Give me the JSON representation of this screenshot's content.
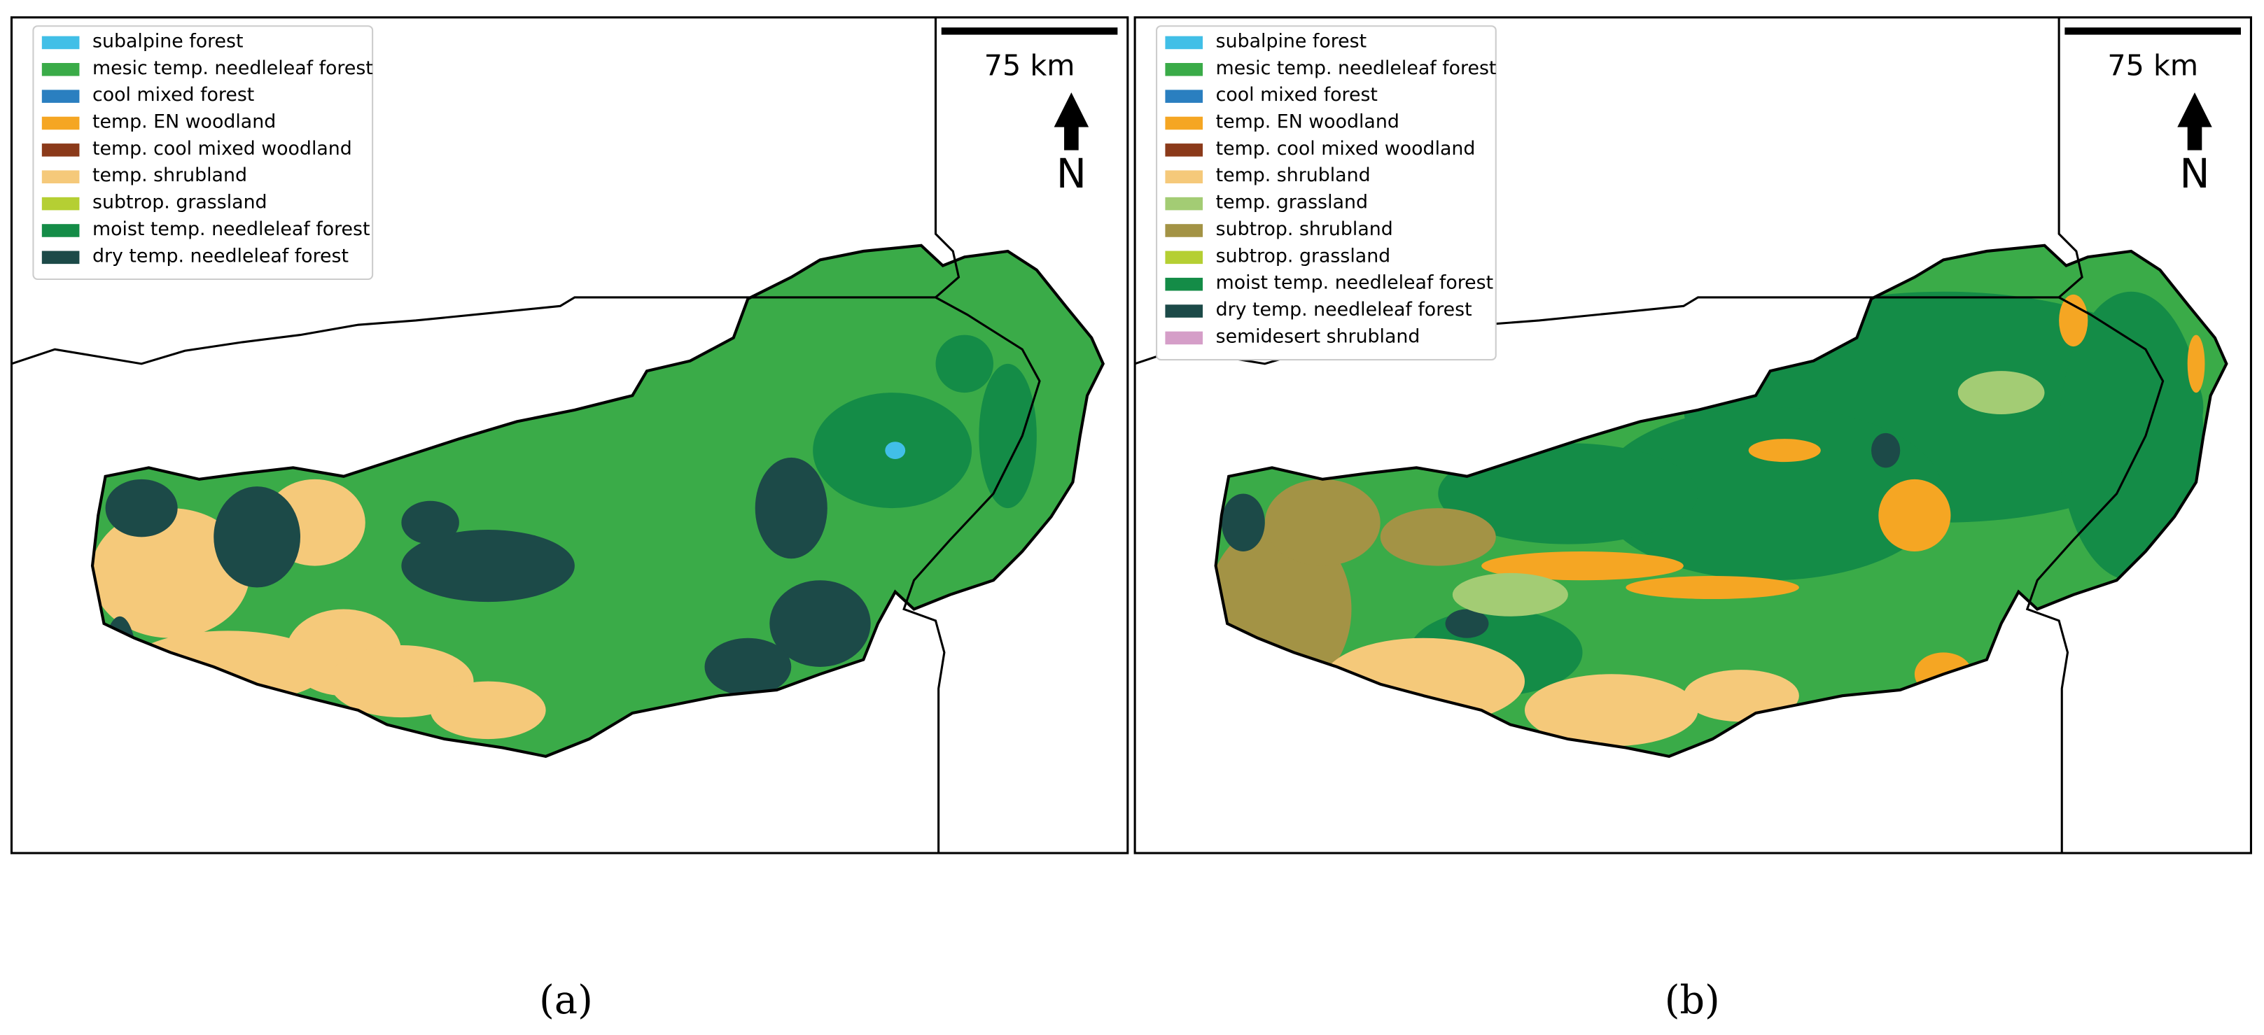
{
  "panels": [
    {
      "caption": "(a)",
      "scale_bar": "75 km",
      "north": "N",
      "legend": [
        {
          "label": "subalpine forest",
          "color": "#41bfe7"
        },
        {
          "label": "mesic temp. needleleaf forest",
          "color": "#3aab48"
        },
        {
          "label": "cool mixed forest",
          "color": "#2a7fc0"
        },
        {
          "label": "temp. EN woodland",
          "color": "#f5a623"
        },
        {
          "label": "temp. cool mixed woodland",
          "color": "#8b3a1a"
        },
        {
          "label": "temp. shrubland",
          "color": "#f5c97a"
        },
        {
          "label": "subtrop. grassland",
          "color": "#b5cf33"
        },
        {
          "label": "moist temp. needleleaf forest",
          "color": "#148c47"
        },
        {
          "label": "dry temp. needleleaf forest",
          "color": "#1c4a48"
        }
      ]
    },
    {
      "caption": "(b)",
      "scale_bar": "75 km",
      "north": "N",
      "legend": [
        {
          "label": "subalpine forest",
          "color": "#41bfe7"
        },
        {
          "label": "mesic temp. needleleaf forest",
          "color": "#3aab48"
        },
        {
          "label": "cool mixed forest",
          "color": "#2a7fc0"
        },
        {
          "label": "temp. EN woodland",
          "color": "#f5a623"
        },
        {
          "label": "temp. cool mixed woodland",
          "color": "#8b3a1a"
        },
        {
          "label": "temp. shrubland",
          "color": "#f5c97a"
        },
        {
          "label": "temp. grassland",
          "color": "#a3cc74"
        },
        {
          "label": "subtrop. shrubland",
          "color": "#a39345"
        },
        {
          "label": "subtrop. grassland",
          "color": "#b5cf33"
        },
        {
          "label": "moist temp. needleleaf forest",
          "color": "#148c47"
        },
        {
          "label": "dry temp. needleleaf forest",
          "color": "#1c4a48"
        },
        {
          "label": "semidesert shrubland",
          "color": "#d59ec8"
        }
      ]
    }
  ]
}
